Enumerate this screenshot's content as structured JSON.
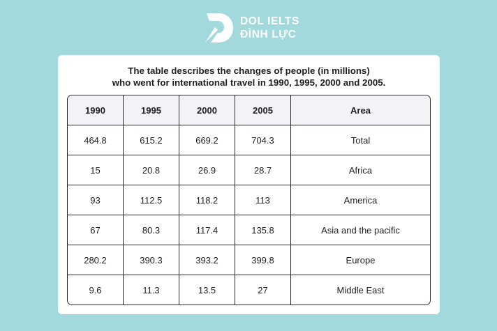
{
  "logo": {
    "line1": "DOL IELTS",
    "line2": "ĐÌNH LỰC",
    "icon": "dol-logo-icon"
  },
  "colors": {
    "background": "#a2d9dd",
    "card": "#ffffff",
    "header_row": "#f3f4f8",
    "border": "#2a2a2a"
  },
  "chart_data": {
    "type": "table",
    "title_line1": "The table describes the changes of people (in millions)",
    "title_line2": "who went for international travel in 1990, 1995, 2000 and 2005.",
    "columns": [
      "1990",
      "1995",
      "2000",
      "2005",
      "Area"
    ],
    "rows": [
      {
        "values": [
          "464.8",
          "615.2",
          "669.2",
          "704.3"
        ],
        "area": "Total"
      },
      {
        "values": [
          "15",
          "20.8",
          "26.9",
          "28.7"
        ],
        "area": "Africa"
      },
      {
        "values": [
          "93",
          "112.5",
          "118.2",
          "113"
        ],
        "area": "America"
      },
      {
        "values": [
          "67",
          "80.3",
          "117.4",
          "135.8"
        ],
        "area": "Asia and the pacific"
      },
      {
        "values": [
          "280.2",
          "390.3",
          "393.2",
          "399.8"
        ],
        "area": "Europe"
      },
      {
        "values": [
          "9.6",
          "11.3",
          "13.5",
          "27"
        ],
        "area": "Middle East"
      }
    ]
  }
}
